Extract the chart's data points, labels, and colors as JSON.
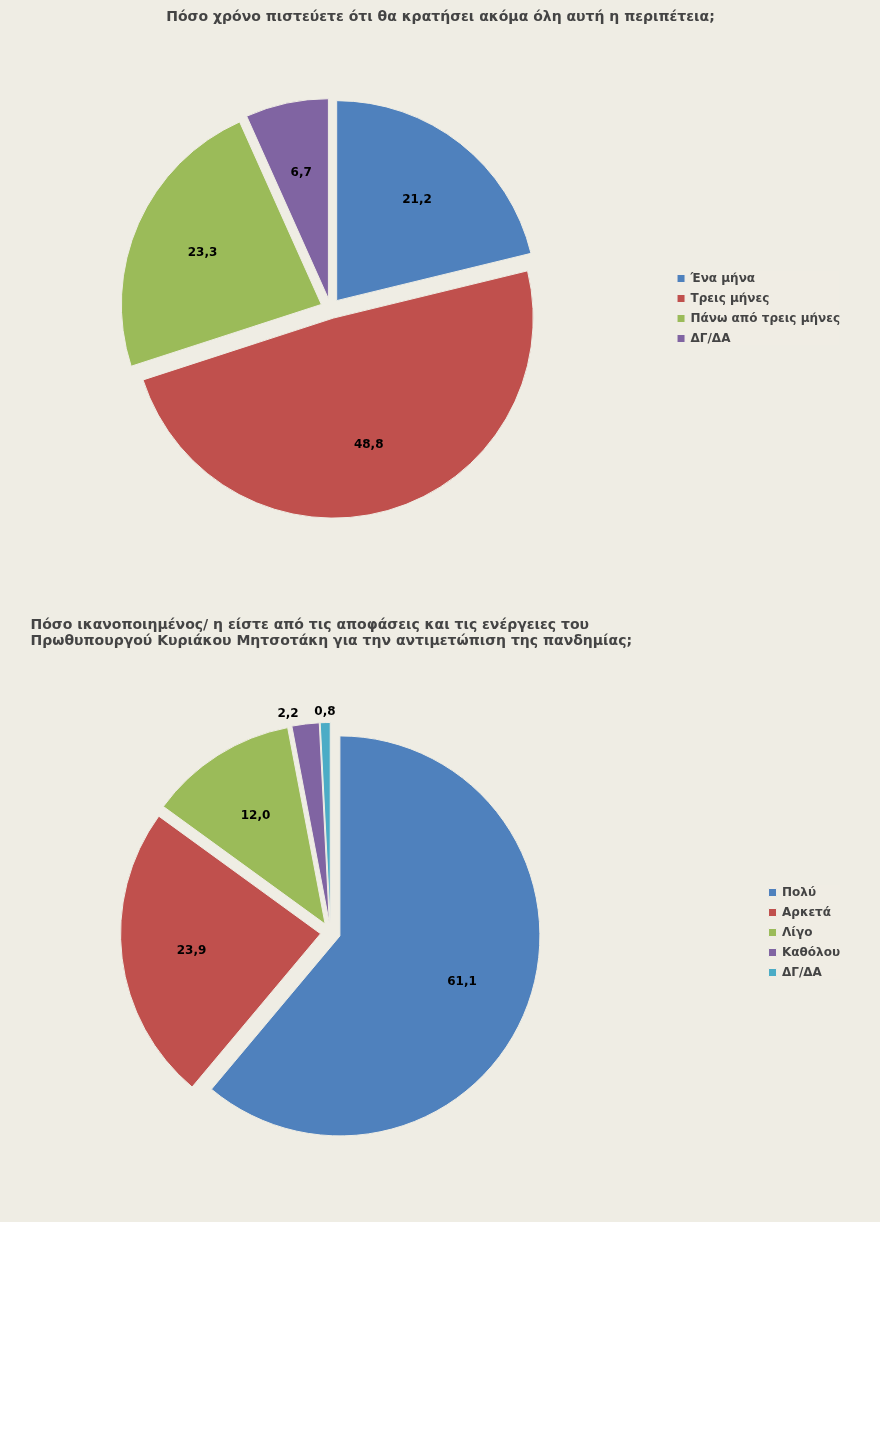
{
  "chart_data": [
    {
      "type": "pie",
      "title": "Πόσο χρόνο πιστεύετε ότι θα κρατήσει ακόμα όλη αυτή η περιπέτεια;",
      "categories": [
        "Ένα μήνα",
        "Τρεις μήνες",
        "Πάνω από τρεις μήνες",
        "ΔΓ/ΔΑ"
      ],
      "values": [
        21.2,
        48.8,
        23.3,
        6.7
      ],
      "colors": [
        "#4f81bd",
        "#c0504d",
        "#9bbb59",
        "#8064a2"
      ],
      "value_labels": [
        "21,2",
        "48,8",
        "23,3",
        "6,7"
      ],
      "legend": "right"
    },
    {
      "type": "pie",
      "title": "Πόσο ικανοποιημένος/ η είστε από τις αποφάσεις και τις ενέργειες του Πρωθυπουργού Κυριάκου Μητσοτάκη  για την αντιμετώπιση της πανδημίας;",
      "categories": [
        "Πολύ",
        "Αρκετά",
        "Λίγο",
        "Καθόλου",
        "ΔΓ/ΔΑ"
      ],
      "values": [
        61.1,
        23.9,
        12.0,
        2.2,
        0.8
      ],
      "colors": [
        "#4f81bd",
        "#c0504d",
        "#9bbb59",
        "#8064a2",
        "#4bacc6"
      ],
      "value_labels": [
        "61,1",
        "23,9",
        "12,0",
        "2,2",
        "0,8"
      ],
      "legend": "right"
    }
  ]
}
